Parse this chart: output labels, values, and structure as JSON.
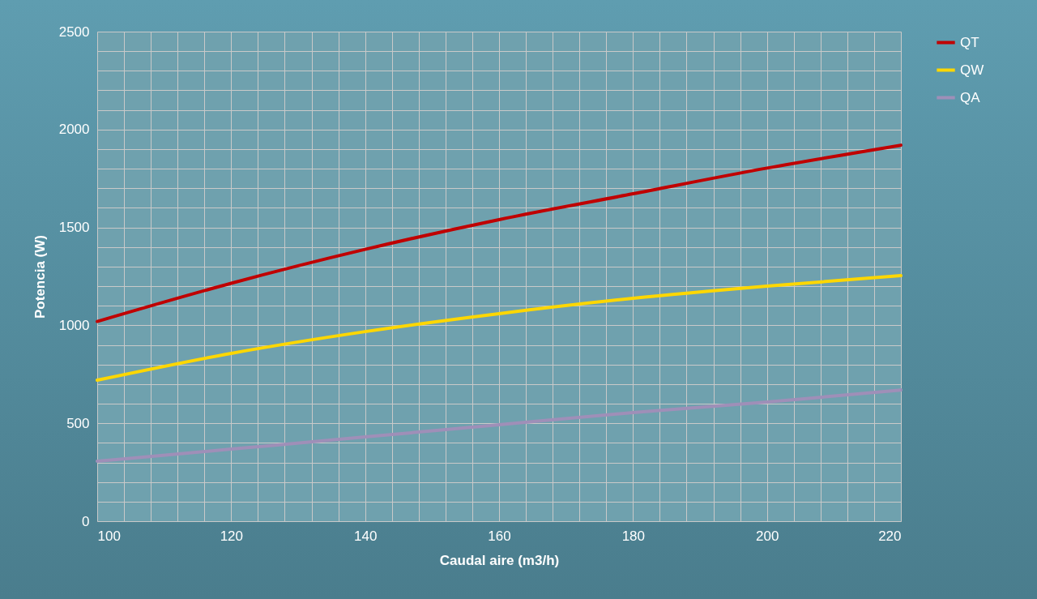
{
  "chart_data": {
    "type": "line",
    "xlabel": "Caudal aire (m3/h)",
    "ylabel": "Potencia (W)",
    "x": [
      100,
      120,
      140,
      160,
      180,
      200,
      220
    ],
    "series": [
      {
        "name": "QT",
        "color": "#c00000",
        "values": [
          1020,
          1215,
          1388,
          1540,
          1672,
          1803,
          1920
        ]
      },
      {
        "name": "QW",
        "color": "#ffd700",
        "values": [
          720,
          857,
          968,
          1060,
          1138,
          1200,
          1254
        ]
      },
      {
        "name": "QA",
        "color": "#9f8fb8",
        "values": [
          306,
          368,
          430,
          493,
          555,
          608,
          670
        ]
      }
    ],
    "xlim": [
      100,
      220
    ],
    "xticks": [
      100,
      {
        "value": 104,
        "label": null
      },
      {
        "value": 108,
        "label": null
      },
      {
        "value": 112,
        "label": null
      },
      {
        "value": 116,
        "label": null
      },
      120,
      {
        "value": 124,
        "label": null
      },
      {
        "value": 128,
        "label": null
      },
      {
        "value": 132,
        "label": null
      },
      {
        "value": 136,
        "label": null
      },
      140,
      {
        "value": 144,
        "label": null
      },
      {
        "value": 148,
        "label": null
      },
      {
        "value": 152,
        "label": null
      },
      {
        "value": 156,
        "label": null
      },
      160,
      {
        "value": 164,
        "label": null
      },
      {
        "value": 168,
        "label": null
      },
      {
        "value": 172,
        "label": null
      },
      {
        "value": 176,
        "label": null
      },
      180,
      {
        "value": 184,
        "label": null
      },
      {
        "value": 188,
        "label": null
      },
      {
        "value": 192,
        "label": null
      },
      {
        "value": 196,
        "label": null
      },
      200,
      {
        "value": 204,
        "label": null
      },
      {
        "value": 208,
        "label": null
      },
      {
        "value": 212,
        "label": null
      },
      {
        "value": 216,
        "label": null
      },
      220
    ],
    "ylim": [
      0,
      2500
    ],
    "yticks": [
      0,
      {
        "value": 100,
        "label": null
      },
      {
        "value": 200,
        "label": null
      },
      {
        "value": 300,
        "label": null
      },
      {
        "value": 400,
        "label": null
      },
      500,
      {
        "value": 600,
        "label": null
      },
      {
        "value": 700,
        "label": null
      },
      {
        "value": 800,
        "label": null
      },
      {
        "value": 900,
        "label": null
      },
      1000,
      {
        "value": 1100,
        "label": null
      },
      {
        "value": 1200,
        "label": null
      },
      {
        "value": 1300,
        "label": null
      },
      {
        "value": 1400,
        "label": null
      },
      1500,
      {
        "value": 1600,
        "label": null
      },
      {
        "value": 1700,
        "label": null
      },
      {
        "value": 1800,
        "label": null
      },
      {
        "value": 1900,
        "label": null
      },
      2000,
      {
        "value": 2100,
        "label": null
      },
      {
        "value": 2200,
        "label": null
      },
      {
        "value": 2300,
        "label": null
      },
      {
        "value": 2400,
        "label": null
      },
      2500
    ],
    "grid": true,
    "legend": "right",
    "marker": "none",
    "line_style": "solid"
  }
}
